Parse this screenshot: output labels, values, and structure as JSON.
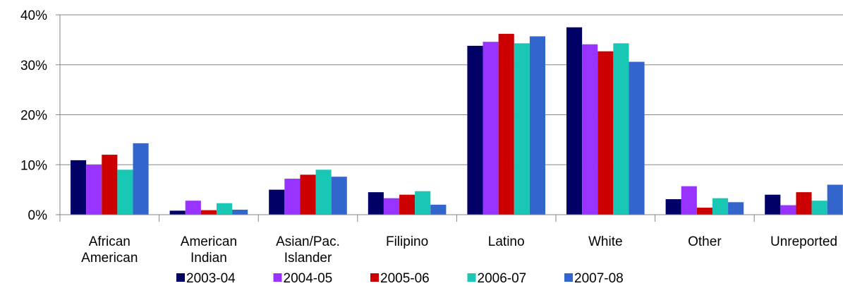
{
  "chart_data": {
    "type": "bar",
    "categories": [
      "African American",
      "American Indian",
      "Asian/Pac. Islander",
      "Filipino",
      "Latino",
      "White",
      "Other",
      "Unreported"
    ],
    "series": [
      {
        "name": "2003-04",
        "color": "#000066",
        "values": [
          10.9,
          0.8,
          5.0,
          4.5,
          33.8,
          37.5,
          3.1,
          4.0
        ]
      },
      {
        "name": "2004-05",
        "color": "#9933ff",
        "values": [
          10.0,
          2.8,
          7.2,
          3.3,
          34.6,
          34.1,
          5.7,
          1.9
        ]
      },
      {
        "name": "2005-06",
        "color": "#cc0000",
        "values": [
          12.0,
          0.9,
          8.0,
          4.0,
          36.2,
          32.7,
          1.4,
          4.5
        ]
      },
      {
        "name": "2006-07",
        "color": "#19c8b4",
        "values": [
          9.0,
          2.3,
          9.0,
          4.7,
          34.3,
          34.3,
          3.3,
          2.8
        ]
      },
      {
        "name": "2007-08",
        "color": "#3366cc",
        "values": [
          14.3,
          1.0,
          7.6,
          2.0,
          35.7,
          30.6,
          2.5,
          6.0
        ]
      }
    ],
    "ylim": [
      0,
      40
    ],
    "yticks": [
      {
        "value": 0,
        "label": "0%"
      },
      {
        "value": 10,
        "label": "10%"
      },
      {
        "value": 20,
        "label": "20%"
      },
      {
        "value": 30,
        "label": "30%"
      },
      {
        "value": 40,
        "label": "40%"
      }
    ],
    "grid": true,
    "legend": "bottom"
  }
}
